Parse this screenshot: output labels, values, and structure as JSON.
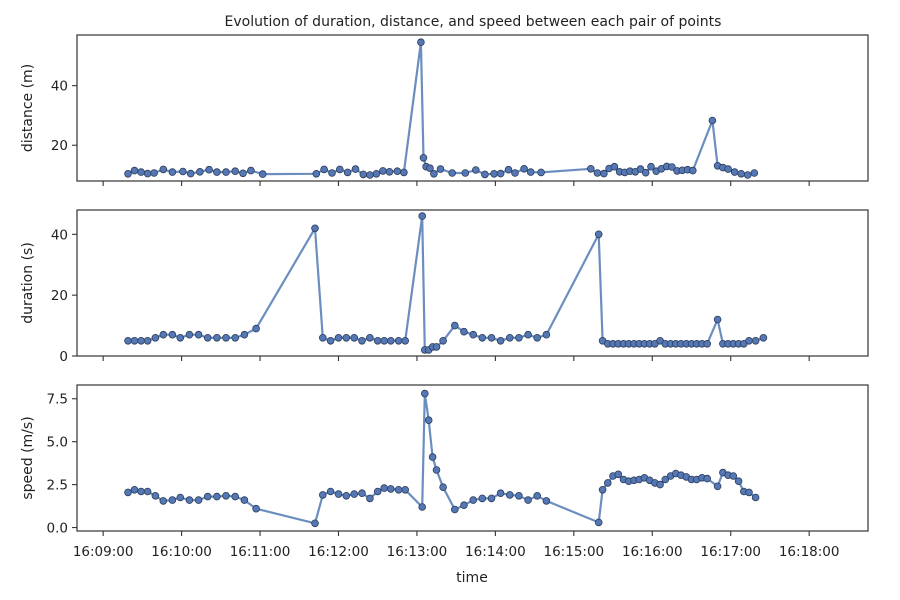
{
  "chart_data": {
    "type": "line",
    "title": "Evolution of duration, distance, and speed between each pair of points",
    "xlabel": "time",
    "x_ticks": [
      "16:09:00",
      "16:10:00",
      "16:11:00",
      "16:12:00",
      "16:13:00",
      "16:14:00",
      "16:15:00",
      "16:16:00",
      "16:17:00",
      "16:18:00"
    ],
    "x_unit": "seconds after 16:09:00",
    "xlim": [
      -20,
      585
    ],
    "line_color": "#6c8ebf",
    "marker_color": "#5578b5",
    "panels": [
      {
        "name": "distance",
        "ylabel": "distance (m)",
        "ylim": [
          8,
          57
        ],
        "yticks": [
          20,
          40
        ],
        "ytick_labels": [
          "20",
          "40"
        ],
        "points": [
          [
            19,
            10.4
          ],
          [
            24,
            11.5
          ],
          [
            29,
            11.0
          ],
          [
            34,
            10.5
          ],
          [
            39,
            10.7
          ],
          [
            46,
            11.9
          ],
          [
            53,
            11.0
          ],
          [
            61,
            11.2
          ],
          [
            67,
            10.5
          ],
          [
            74,
            11.1
          ],
          [
            81,
            11.8
          ],
          [
            87,
            11.0
          ],
          [
            94,
            11.0
          ],
          [
            101,
            11.3
          ],
          [
            107,
            10.6
          ],
          [
            113,
            11.5
          ],
          [
            122,
            10.3
          ],
          [
            163,
            10.4
          ],
          [
            169,
            11.9
          ],
          [
            175,
            10.7
          ],
          [
            181,
            11.9
          ],
          [
            187,
            10.9
          ],
          [
            193,
            12.0
          ],
          [
            199,
            10.2
          ],
          [
            204,
            10.0
          ],
          [
            209,
            10.4
          ],
          [
            214,
            11.4
          ],
          [
            219,
            11.1
          ],
          [
            225,
            11.3
          ],
          [
            230,
            10.9
          ],
          [
            243,
            54.6
          ],
          [
            245,
            15.8
          ],
          [
            247,
            12.8
          ],
          [
            250,
            12.3
          ],
          [
            253,
            10.4
          ],
          [
            258,
            12.0
          ],
          [
            267,
            10.7
          ],
          [
            277,
            10.7
          ],
          [
            285,
            11.7
          ],
          [
            292,
            10.2
          ],
          [
            299,
            10.4
          ],
          [
            304,
            10.5
          ],
          [
            310,
            11.8
          ],
          [
            315,
            10.7
          ],
          [
            322,
            12.1
          ],
          [
            327,
            11.0
          ],
          [
            335,
            10.9
          ],
          [
            373,
            12.1
          ],
          [
            378,
            10.7
          ],
          [
            383,
            10.5
          ],
          [
            387,
            12.2
          ],
          [
            391,
            12.8
          ],
          [
            395,
            11.1
          ],
          [
            399,
            10.9
          ],
          [
            403,
            11.3
          ],
          [
            407,
            11.1
          ],
          [
            411,
            12.0
          ],
          [
            415,
            10.8
          ],
          [
            419,
            12.8
          ],
          [
            423,
            11.3
          ],
          [
            427,
            12.1
          ],
          [
            431,
            12.9
          ],
          [
            435,
            12.7
          ],
          [
            439,
            11.4
          ],
          [
            443,
            11.6
          ],
          [
            447,
            11.8
          ],
          [
            451,
            11.5
          ],
          [
            466,
            28.3
          ],
          [
            470,
            13.1
          ],
          [
            474,
            12.5
          ],
          [
            478,
            12.0
          ],
          [
            483,
            11.0
          ],
          [
            488,
            10.4
          ],
          [
            493,
            10.0
          ],
          [
            498,
            10.7
          ]
        ]
      },
      {
        "name": "duration",
        "ylabel": "duration (s)",
        "ylim": [
          0,
          48
        ],
        "yticks": [
          0,
          20,
          40
        ],
        "ytick_labels": [
          "0",
          "20",
          "40"
        ],
        "points": [
          [
            19,
            5
          ],
          [
            24,
            5
          ],
          [
            29,
            5
          ],
          [
            34,
            5
          ],
          [
            40,
            6
          ],
          [
            46,
            7
          ],
          [
            53,
            7
          ],
          [
            59,
            6
          ],
          [
            66,
            7
          ],
          [
            73,
            7
          ],
          [
            80,
            6
          ],
          [
            87,
            6
          ],
          [
            94,
            6
          ],
          [
            101,
            6
          ],
          [
            108,
            7
          ],
          [
            117,
            9
          ],
          [
            162,
            42
          ],
          [
            168,
            6
          ],
          [
            174,
            5
          ],
          [
            180,
            6
          ],
          [
            186,
            6
          ],
          [
            192,
            6
          ],
          [
            198,
            5
          ],
          [
            204,
            6
          ],
          [
            210,
            5
          ],
          [
            215,
            5
          ],
          [
            220,
            5
          ],
          [
            226,
            5
          ],
          [
            231,
            5
          ],
          [
            244,
            46
          ],
          [
            246,
            2
          ],
          [
            249,
            2
          ],
          [
            252,
            3
          ],
          [
            255,
            3
          ],
          [
            260,
            5
          ],
          [
            269,
            10
          ],
          [
            276,
            8
          ],
          [
            283,
            7
          ],
          [
            290,
            6
          ],
          [
            297,
            6
          ],
          [
            304,
            5
          ],
          [
            311,
            6
          ],
          [
            318,
            6
          ],
          [
            325,
            7
          ],
          [
            332,
            6
          ],
          [
            339,
            7
          ],
          [
            379,
            40
          ],
          [
            382,
            5
          ],
          [
            386,
            4
          ],
          [
            390,
            4
          ],
          [
            394,
            4
          ],
          [
            398,
            4
          ],
          [
            402,
            4
          ],
          [
            406,
            4
          ],
          [
            410,
            4
          ],
          [
            414,
            4
          ],
          [
            418,
            4
          ],
          [
            422,
            4
          ],
          [
            426,
            5
          ],
          [
            430,
            4
          ],
          [
            434,
            4
          ],
          [
            438,
            4
          ],
          [
            442,
            4
          ],
          [
            446,
            4
          ],
          [
            450,
            4
          ],
          [
            454,
            4
          ],
          [
            458,
            4
          ],
          [
            462,
            4
          ],
          [
            470,
            12
          ],
          [
            474,
            4
          ],
          [
            478,
            4
          ],
          [
            482,
            4
          ],
          [
            486,
            4
          ],
          [
            490,
            4
          ],
          [
            494,
            5
          ],
          [
            499,
            5
          ],
          [
            505,
            6
          ]
        ]
      },
      {
        "name": "speed",
        "ylabel": "speed (m/s)",
        "ylim": [
          -0.2,
          8.3
        ],
        "yticks": [
          0.0,
          2.5,
          5.0,
          7.5
        ],
        "ytick_labels": [
          "0.0",
          "2.5",
          "5.0",
          "7.5"
        ],
        "points": [
          [
            19,
            2.05
          ],
          [
            24,
            2.2
          ],
          [
            29,
            2.1
          ],
          [
            34,
            2.1
          ],
          [
            40,
            1.85
          ],
          [
            46,
            1.55
          ],
          [
            53,
            1.6
          ],
          [
            59,
            1.75
          ],
          [
            66,
            1.6
          ],
          [
            73,
            1.6
          ],
          [
            80,
            1.8
          ],
          [
            87,
            1.8
          ],
          [
            94,
            1.85
          ],
          [
            101,
            1.8
          ],
          [
            108,
            1.6
          ],
          [
            117,
            1.1
          ],
          [
            162,
            0.25
          ],
          [
            168,
            1.9
          ],
          [
            174,
            2.1
          ],
          [
            180,
            1.95
          ],
          [
            186,
            1.85
          ],
          [
            192,
            1.95
          ],
          [
            198,
            2.0
          ],
          [
            204,
            1.7
          ],
          [
            210,
            2.1
          ],
          [
            215,
            2.3
          ],
          [
            220,
            2.25
          ],
          [
            226,
            2.2
          ],
          [
            231,
            2.2
          ],
          [
            244,
            1.2
          ],
          [
            246,
            7.8
          ],
          [
            249,
            6.25
          ],
          [
            252,
            4.1
          ],
          [
            255,
            3.35
          ],
          [
            260,
            2.35
          ],
          [
            269,
            1.05
          ],
          [
            276,
            1.3
          ],
          [
            283,
            1.6
          ],
          [
            290,
            1.7
          ],
          [
            297,
            1.7
          ],
          [
            304,
            2.0
          ],
          [
            311,
            1.9
          ],
          [
            318,
            1.85
          ],
          [
            325,
            1.6
          ],
          [
            332,
            1.85
          ],
          [
            339,
            1.55
          ],
          [
            379,
            0.3
          ],
          [
            382,
            2.2
          ],
          [
            386,
            2.6
          ],
          [
            390,
            3.0
          ],
          [
            394,
            3.1
          ],
          [
            398,
            2.8
          ],
          [
            402,
            2.7
          ],
          [
            406,
            2.75
          ],
          [
            410,
            2.8
          ],
          [
            414,
            2.9
          ],
          [
            418,
            2.75
          ],
          [
            422,
            2.6
          ],
          [
            426,
            2.5
          ],
          [
            430,
            2.8
          ],
          [
            434,
            3.0
          ],
          [
            438,
            3.15
          ],
          [
            442,
            3.05
          ],
          [
            446,
            2.95
          ],
          [
            450,
            2.8
          ],
          [
            454,
            2.8
          ],
          [
            458,
            2.9
          ],
          [
            462,
            2.85
          ],
          [
            470,
            2.4
          ],
          [
            474,
            3.2
          ],
          [
            478,
            3.05
          ],
          [
            482,
            3.0
          ],
          [
            486,
            2.7
          ],
          [
            490,
            2.1
          ],
          [
            494,
            2.05
          ],
          [
            499,
            1.75
          ]
        ]
      }
    ]
  }
}
